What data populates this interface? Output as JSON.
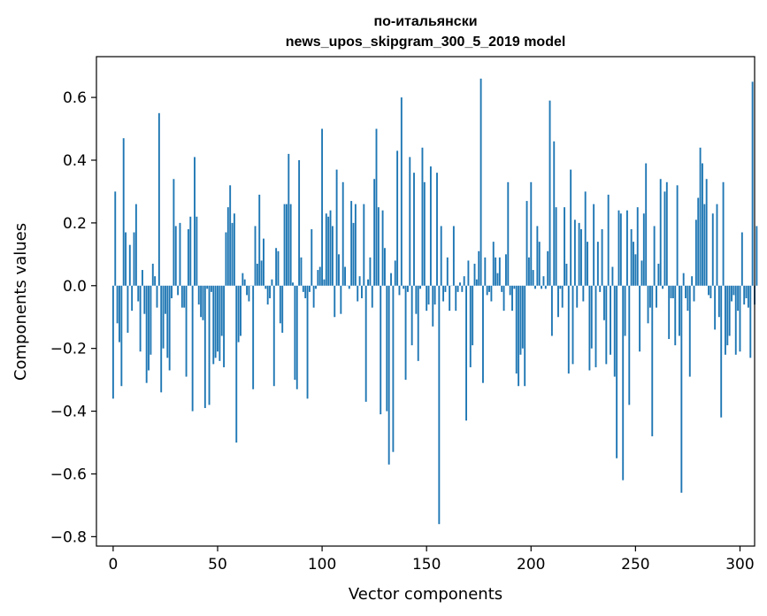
{
  "chart_data": {
    "type": "bar",
    "title": "по-итальянски",
    "subtitle": "news_upos_skipgram_300_5_2019 model",
    "xlabel": "Vector components",
    "ylabel": "Components values",
    "xlim": [
      -8,
      307
    ],
    "ylim": [
      -0.83,
      0.73
    ],
    "xticks": [
      0,
      50,
      100,
      150,
      200,
      250,
      300
    ],
    "xtick_labels": [
      "0",
      "50",
      "100",
      "150",
      "200",
      "250",
      "300"
    ],
    "yticks": [
      -0.8,
      -0.6,
      -0.4,
      -0.2,
      0.0,
      0.2,
      0.4,
      0.6
    ],
    "ytick_labels": [
      "−0.8",
      "−0.6",
      "−0.4",
      "−0.2",
      "0.0",
      "0.2",
      "0.4",
      "0.6"
    ],
    "bar_color": "#1f77b4",
    "grid": false,
    "values": [
      -0.36,
      0.3,
      -0.12,
      -0.18,
      -0.32,
      0.47,
      0.17,
      -0.15,
      0.13,
      -0.08,
      0.17,
      0.26,
      -0.05,
      -0.21,
      0.05,
      -0.09,
      -0.31,
      -0.27,
      -0.22,
      0.07,
      0.03,
      -0.07,
      0.55,
      -0.34,
      -0.2,
      -0.09,
      -0.23,
      -0.27,
      -0.04,
      0.34,
      0.19,
      -0.03,
      0.2,
      -0.07,
      -0.07,
      -0.29,
      0.18,
      0.22,
      -0.4,
      0.41,
      0.22,
      -0.06,
      -0.1,
      -0.11,
      -0.39,
      -0.01,
      -0.38,
      -0.02,
      -0.25,
      -0.23,
      -0.21,
      -0.24,
      -0.16,
      -0.26,
      0.17,
      0.25,
      0.32,
      0.2,
      0.23,
      -0.5,
      -0.18,
      -0.16,
      0.04,
      0.02,
      -0.03,
      -0.05,
      0.0,
      -0.33,
      0.19,
      0.07,
      0.29,
      0.08,
      0.15,
      -0.01,
      -0.06,
      -0.04,
      0.02,
      -0.32,
      0.12,
      0.11,
      -0.12,
      -0.15,
      0.26,
      0.26,
      0.42,
      0.26,
      0.01,
      -0.3,
      -0.33,
      0.4,
      0.09,
      -0.02,
      -0.04,
      -0.36,
      -0.02,
      0.18,
      -0.07,
      -0.01,
      0.05,
      0.06,
      0.5,
      0.02,
      0.23,
      0.22,
      0.24,
      0.19,
      -0.1,
      0.37,
      0.1,
      -0.09,
      0.33,
      0.06,
      0.0,
      -0.01,
      0.27,
      0.2,
      0.26,
      -0.05,
      0.03,
      -0.04,
      0.26,
      -0.37,
      0.02,
      0.09,
      -0.07,
      0.34,
      0.5,
      0.25,
      -0.41,
      0.24,
      0.12,
      -0.4,
      -0.57,
      0.04,
      -0.53,
      0.08,
      0.43,
      -0.03,
      0.6,
      -0.01,
      -0.3,
      -0.02,
      0.41,
      -0.19,
      0.36,
      -0.09,
      -0.24,
      -0.01,
      0.44,
      0.33,
      -0.08,
      -0.06,
      0.38,
      -0.13,
      -0.06,
      0.36,
      -0.76,
      0.19,
      -0.05,
      -0.02,
      0.09,
      -0.08,
      0.0,
      0.19,
      -0.08,
      -0.02,
      0.01,
      -0.02,
      0.03,
      -0.43,
      0.08,
      -0.26,
      -0.19,
      0.07,
      0.02,
      0.11,
      0.66,
      -0.31,
      0.09,
      -0.03,
      -0.02,
      -0.05,
      0.14,
      0.09,
      0.04,
      0.09,
      -0.02,
      -0.08,
      0.1,
      0.33,
      -0.03,
      -0.08,
      -0.01,
      -0.28,
      -0.32,
      -0.22,
      -0.2,
      -0.32,
      0.27,
      0.09,
      0.33,
      0.05,
      -0.01,
      0.19,
      0.14,
      -0.01,
      0.03,
      -0.01,
      0.11,
      0.59,
      -0.16,
      0.46,
      0.25,
      -0.1,
      -0.01,
      -0.07,
      0.25,
      0.07,
      -0.28,
      0.37,
      -0.25,
      0.21,
      -0.07,
      0.2,
      0.18,
      -0.05,
      0.3,
      0.14,
      -0.27,
      -0.2,
      0.26,
      -0.26,
      0.14,
      -0.02,
      0.18,
      -0.11,
      -0.25,
      0.29,
      -0.22,
      0.06,
      -0.29,
      -0.55,
      0.24,
      0.23,
      -0.62,
      -0.16,
      0.24,
      -0.38,
      0.18,
      0.14,
      0.1,
      0.25,
      -0.21,
      0.08,
      0.23,
      0.39,
      -0.12,
      -0.07,
      -0.48,
      0.19,
      -0.07,
      0.07,
      0.34,
      -0.01,
      0.3,
      0.33,
      -0.17,
      -0.04,
      -0.04,
      -0.19,
      0.32,
      -0.16,
      -0.66,
      0.04,
      -0.04,
      -0.08,
      -0.29,
      0.03,
      -0.05,
      0.21,
      0.28,
      0.44,
      0.39,
      0.26,
      0.34,
      -0.03,
      -0.04,
      0.23,
      -0.14,
      0.26,
      -0.1,
      -0.42,
      0.33,
      -0.22,
      -0.19,
      -0.16,
      -0.05,
      -0.03,
      -0.22,
      -0.08,
      -0.21,
      0.17,
      -0.06,
      -0.04,
      -0.07,
      -0.23,
      0.65,
      -0.06,
      0.19
    ]
  }
}
